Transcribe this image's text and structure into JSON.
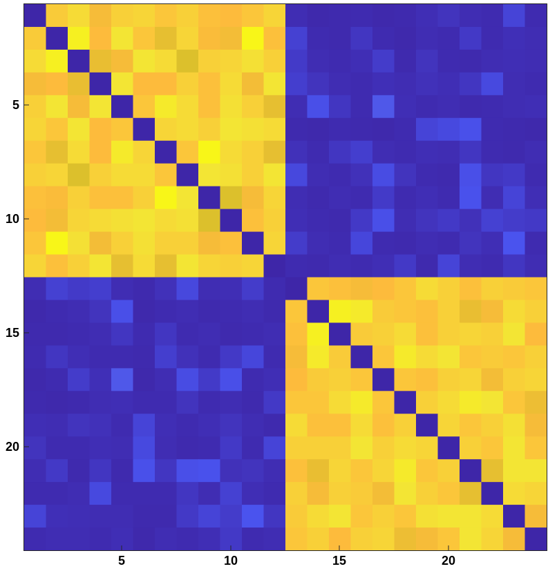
{
  "chart_data": {
    "type": "heatmap",
    "title": "",
    "xlabel": "",
    "ylabel": "",
    "rows": 24,
    "cols": 24,
    "xlim": [
      0.5,
      24.5
    ],
    "ylim": [
      0.5,
      24.5
    ],
    "y_direction": "reversed",
    "x_ticks": [
      5,
      10,
      15,
      20
    ],
    "y_ticks": [
      5,
      10,
      15,
      20
    ],
    "x_tick_labels": [
      "5",
      "10",
      "15",
      "20"
    ],
    "y_tick_labels": [
      "5",
      "10",
      "15",
      "20"
    ],
    "grid": false,
    "legend": "none",
    "colormap": {
      "name": "parula-like",
      "stops": [
        "#3e26a8",
        "#4a54f0",
        "#dcc02c",
        "#fdbb3c",
        "#f3e534",
        "#f9fb0e"
      ],
      "vmin": 0,
      "vmax": 1
    },
    "blocks": [
      {
        "rows": [
          1,
          12
        ],
        "cols": [
          1,
          12
        ],
        "value": "high",
        "diagonal": "low"
      },
      {
        "rows": [
          13,
          24
        ],
        "cols": [
          13,
          24
        ],
        "value": "high",
        "diagonal": "low"
      },
      {
        "rows": [
          1,
          12
        ],
        "cols": [
          13,
          24
        ],
        "value": "low"
      },
      {
        "rows": [
          13,
          24
        ],
        "cols": [
          1,
          12
        ],
        "value": "low"
      }
    ],
    "values": [
      [
        0.0,
        0.75,
        0.78,
        0.7,
        0.76,
        0.77,
        0.74,
        0.76,
        0.73,
        0.72,
        0.74,
        0.77,
        0.05,
        0.02,
        0.03,
        0.04,
        0.02,
        0.03,
        0.06,
        0.1,
        0.05,
        0.04,
        0.22,
        0.04
      ],
      [
        0.75,
        0.0,
        0.84,
        0.72,
        0.8,
        0.74,
        0.65,
        0.77,
        0.71,
        0.69,
        0.86,
        0.73,
        0.2,
        0.04,
        0.03,
        0.12,
        0.04,
        0.02,
        0.05,
        0.04,
        0.14,
        0.04,
        0.07,
        0.05
      ],
      [
        0.78,
        0.84,
        0.0,
        0.66,
        0.7,
        0.8,
        0.78,
        0.62,
        0.76,
        0.77,
        0.79,
        0.76,
        0.15,
        0.05,
        0.04,
        0.06,
        0.16,
        0.03,
        0.1,
        0.04,
        0.03,
        0.05,
        0.06,
        0.05
      ],
      [
        0.7,
        0.72,
        0.66,
        0.0,
        0.8,
        0.72,
        0.72,
        0.76,
        0.73,
        0.78,
        0.69,
        0.8,
        0.18,
        0.1,
        0.05,
        0.04,
        0.07,
        0.05,
        0.08,
        0.06,
        0.12,
        0.26,
        0.05,
        0.04
      ],
      [
        0.76,
        0.8,
        0.7,
        0.8,
        0.0,
        0.74,
        0.82,
        0.78,
        0.73,
        0.79,
        0.76,
        0.65,
        0.05,
        0.3,
        0.12,
        0.04,
        0.35,
        0.06,
        0.04,
        0.05,
        0.03,
        0.04,
        0.05,
        0.06
      ],
      [
        0.77,
        0.74,
        0.8,
        0.72,
        0.74,
        0.0,
        0.77,
        0.78,
        0.76,
        0.8,
        0.79,
        0.78,
        0.03,
        0.02,
        0.04,
        0.03,
        0.02,
        0.04,
        0.22,
        0.26,
        0.31,
        0.04,
        0.03,
        0.02
      ],
      [
        0.74,
        0.65,
        0.78,
        0.72,
        0.82,
        0.77,
        0.0,
        0.74,
        0.86,
        0.78,
        0.76,
        0.65,
        0.08,
        0.04,
        0.12,
        0.18,
        0.05,
        0.04,
        0.06,
        0.05,
        0.12,
        0.04,
        0.03,
        0.05
      ],
      [
        0.76,
        0.77,
        0.62,
        0.76,
        0.78,
        0.78,
        0.74,
        0.0,
        0.8,
        0.79,
        0.76,
        0.8,
        0.25,
        0.05,
        0.04,
        0.08,
        0.28,
        0.1,
        0.04,
        0.03,
        0.3,
        0.12,
        0.14,
        0.04
      ],
      [
        0.73,
        0.71,
        0.76,
        0.73,
        0.73,
        0.76,
        0.86,
        0.8,
        0.0,
        0.62,
        0.7,
        0.77,
        0.05,
        0.03,
        0.05,
        0.04,
        0.15,
        0.04,
        0.06,
        0.04,
        0.32,
        0.05,
        0.22,
        0.06
      ],
      [
        0.72,
        0.69,
        0.77,
        0.78,
        0.79,
        0.8,
        0.78,
        0.79,
        0.62,
        0.0,
        0.73,
        0.76,
        0.06,
        0.04,
        0.03,
        0.14,
        0.3,
        0.05,
        0.1,
        0.14,
        0.08,
        0.2,
        0.16,
        0.14
      ],
      [
        0.74,
        0.86,
        0.79,
        0.69,
        0.76,
        0.79,
        0.76,
        0.76,
        0.7,
        0.73,
        0.0,
        0.77,
        0.16,
        0.05,
        0.04,
        0.24,
        0.04,
        0.03,
        0.05,
        0.04,
        0.1,
        0.06,
        0.33,
        0.04
      ],
      [
        0.77,
        0.73,
        0.76,
        0.8,
        0.65,
        0.78,
        0.65,
        0.8,
        0.77,
        0.76,
        0.77,
        0.0,
        0.04,
        0.03,
        0.05,
        0.04,
        0.06,
        0.14,
        0.03,
        0.22,
        0.05,
        0.04,
        0.12,
        0.05
      ],
      [
        0.05,
        0.2,
        0.15,
        0.18,
        0.05,
        0.03,
        0.08,
        0.25,
        0.05,
        0.06,
        0.16,
        0.04,
        0.0,
        0.74,
        0.73,
        0.7,
        0.72,
        0.74,
        0.78,
        0.76,
        0.73,
        0.76,
        0.75,
        0.74
      ],
      [
        0.02,
        0.04,
        0.05,
        0.1,
        0.3,
        0.02,
        0.04,
        0.05,
        0.03,
        0.04,
        0.05,
        0.03,
        0.74,
        0.0,
        0.84,
        0.82,
        0.75,
        0.74,
        0.73,
        0.76,
        0.66,
        0.7,
        0.78,
        0.76
      ],
      [
        0.03,
        0.03,
        0.04,
        0.05,
        0.12,
        0.04,
        0.12,
        0.04,
        0.05,
        0.03,
        0.04,
        0.05,
        0.73,
        0.84,
        0.0,
        0.75,
        0.76,
        0.78,
        0.73,
        0.76,
        0.77,
        0.76,
        0.8,
        0.72
      ],
      [
        0.04,
        0.12,
        0.06,
        0.04,
        0.04,
        0.03,
        0.18,
        0.08,
        0.04,
        0.14,
        0.24,
        0.04,
        0.7,
        0.82,
        0.75,
        0.0,
        0.74,
        0.82,
        0.78,
        0.8,
        0.74,
        0.75,
        0.74,
        0.76
      ],
      [
        0.02,
        0.04,
        0.16,
        0.07,
        0.35,
        0.02,
        0.05,
        0.28,
        0.15,
        0.3,
        0.04,
        0.06,
        0.72,
        0.75,
        0.76,
        0.74,
        0.0,
        0.74,
        0.73,
        0.76,
        0.77,
        0.69,
        0.76,
        0.77
      ],
      [
        0.03,
        0.02,
        0.03,
        0.05,
        0.06,
        0.04,
        0.04,
        0.1,
        0.04,
        0.05,
        0.03,
        0.14,
        0.74,
        0.74,
        0.78,
        0.82,
        0.74,
        0.0,
        0.76,
        0.78,
        0.82,
        0.8,
        0.74,
        0.67
      ],
      [
        0.06,
        0.05,
        0.1,
        0.08,
        0.04,
        0.22,
        0.06,
        0.04,
        0.06,
        0.1,
        0.05,
        0.03,
        0.78,
        0.73,
        0.73,
        0.78,
        0.73,
        0.76,
        0.0,
        0.77,
        0.74,
        0.76,
        0.79,
        0.7
      ],
      [
        0.1,
        0.04,
        0.04,
        0.06,
        0.05,
        0.26,
        0.05,
        0.03,
        0.04,
        0.14,
        0.04,
        0.22,
        0.76,
        0.76,
        0.76,
        0.8,
        0.76,
        0.78,
        0.77,
        0.0,
        0.76,
        0.74,
        0.8,
        0.74
      ],
      [
        0.05,
        0.14,
        0.03,
        0.12,
        0.03,
        0.31,
        0.12,
        0.3,
        0.32,
        0.08,
        0.1,
        0.05,
        0.73,
        0.66,
        0.77,
        0.74,
        0.77,
        0.82,
        0.74,
        0.76,
        0.0,
        0.65,
        0.8,
        0.8
      ],
      [
        0.04,
        0.04,
        0.05,
        0.26,
        0.04,
        0.04,
        0.04,
        0.12,
        0.05,
        0.2,
        0.06,
        0.04,
        0.76,
        0.7,
        0.76,
        0.75,
        0.69,
        0.8,
        0.76,
        0.74,
        0.65,
        0.0,
        0.78,
        0.77
      ],
      [
        0.22,
        0.07,
        0.06,
        0.05,
        0.05,
        0.03,
        0.03,
        0.14,
        0.22,
        0.16,
        0.33,
        0.12,
        0.75,
        0.78,
        0.8,
        0.74,
        0.76,
        0.74,
        0.79,
        0.8,
        0.8,
        0.78,
        0.0,
        0.7
      ],
      [
        0.04,
        0.05,
        0.05,
        0.04,
        0.06,
        0.02,
        0.05,
        0.04,
        0.06,
        0.14,
        0.04,
        0.05,
        0.74,
        0.76,
        0.72,
        0.76,
        0.77,
        0.67,
        0.7,
        0.74,
        0.8,
        0.77,
        0.7,
        0.0
      ]
    ]
  }
}
